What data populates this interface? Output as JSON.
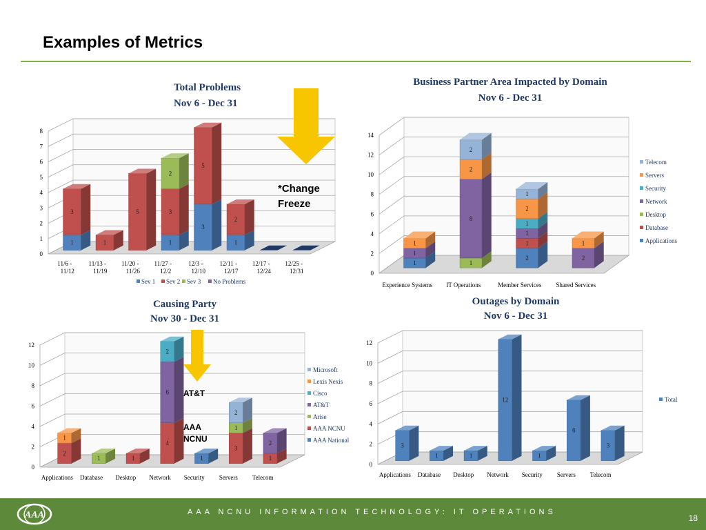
{
  "page": {
    "title": "Examples of Metrics",
    "footer": "AAA NCNU INFORMATION TECHNOLOGY: IT OPERATIONS",
    "page_number": "18",
    "notes": {
      "change_freeze": [
        "*Change",
        "Freeze"
      ],
      "att": "AT&T",
      "aaa_ncnu": [
        "AAA",
        "NCNU"
      ]
    },
    "colors": {
      "accent": "#7ab33e",
      "footer": "#5d8a3a",
      "arrow": "#f7c600"
    }
  },
  "chart_data": [
    {
      "type": "bar",
      "stacked": true,
      "title": "Total Problems",
      "subtitle": "Nov 6 - Dec 31",
      "categories": [
        "11/6 - 11/12",
        "11/13 - 11/19",
        "11/20 - 11/26",
        "11/27 - 12/2",
        "12/3 - 12/10",
        "12/11 - 12/17",
        "12/17 - 12/24",
        "12/25 - 12/31"
      ],
      "ylim": [
        0,
        8
      ],
      "yticks": [
        0,
        1,
        2,
        3,
        4,
        5,
        6,
        7,
        8
      ],
      "legend_position": "bottom",
      "series": [
        {
          "name": "Sev 1",
          "color": "#4f81bd",
          "values": [
            1,
            0,
            0,
            1,
            3,
            1,
            0,
            0
          ]
        },
        {
          "name": "Sev 2",
          "color": "#c0504d",
          "values": [
            3,
            1,
            5,
            3,
            5,
            2,
            0,
            0
          ]
        },
        {
          "name": "Sev 3",
          "color": "#9bbb59",
          "values": [
            0,
            0,
            0,
            2,
            0,
            0,
            0,
            0
          ]
        },
        {
          "name": "No Problems",
          "color": "#8064a2",
          "values": [
            0,
            0,
            0,
            0,
            0,
            0,
            0,
            0
          ]
        }
      ]
    },
    {
      "type": "bar",
      "stacked": true,
      "title": "Business Partner Area Impacted by Domain",
      "subtitle": "Nov 6 - Dec 31",
      "categories": [
        "Experience Systems",
        "IT Operations",
        "Member Services",
        "Shared Services"
      ],
      "ylim": [
        0,
        14
      ],
      "yticks": [
        0,
        2,
        4,
        6,
        8,
        10,
        12,
        14
      ],
      "legend_position": "right",
      "series": [
        {
          "name": "Applications",
          "color": "#4f81bd",
          "values": [
            1,
            0,
            2,
            0
          ]
        },
        {
          "name": "Database",
          "color": "#c0504d",
          "values": [
            0,
            0,
            1,
            0
          ]
        },
        {
          "name": "Desktop",
          "color": "#9bbb59",
          "values": [
            0,
            1,
            0,
            0
          ]
        },
        {
          "name": "Network",
          "color": "#8064a2",
          "values": [
            1,
            8,
            1,
            2
          ]
        },
        {
          "name": "Security",
          "color": "#4bacc6",
          "values": [
            0,
            0,
            1,
            0
          ]
        },
        {
          "name": "Servers",
          "color": "#f79646",
          "values": [
            1,
            2,
            2,
            1
          ]
        },
        {
          "name": "Telecom",
          "color": "#95b3d7",
          "values": [
            0,
            2,
            1,
            0
          ]
        }
      ]
    },
    {
      "type": "bar",
      "stacked": true,
      "title": "Causing Party",
      "subtitle": "Nov 30 - Dec 31",
      "categories": [
        "Applications",
        "Database",
        "Desktop",
        "Network",
        "Security",
        "Servers",
        "Telecom"
      ],
      "ylim": [
        0,
        12
      ],
      "yticks": [
        0,
        2,
        4,
        6,
        8,
        10,
        12
      ],
      "legend_position": "right",
      "series": [
        {
          "name": "AAA National",
          "color": "#4f81bd",
          "values": [
            0,
            0,
            0,
            0,
            1,
            0,
            0
          ]
        },
        {
          "name": "AAA NCNU",
          "color": "#c0504d",
          "values": [
            2,
            0,
            1,
            4,
            0,
            3,
            1
          ]
        },
        {
          "name": "Arise",
          "color": "#9bbb59",
          "values": [
            0,
            1,
            0,
            0,
            0,
            1,
            0
          ]
        },
        {
          "name": "AT&T",
          "color": "#8064a2",
          "values": [
            0,
            0,
            0,
            6,
            0,
            0,
            2
          ]
        },
        {
          "name": "Cisco",
          "color": "#4bacc6",
          "values": [
            0,
            0,
            0,
            2,
            0,
            0,
            0
          ]
        },
        {
          "name": "Lexis Nexis",
          "color": "#f79646",
          "values": [
            1,
            0,
            0,
            0,
            0,
            0,
            0
          ]
        },
        {
          "name": "Microsoft",
          "color": "#95b3d7",
          "values": [
            0,
            0,
            0,
            0,
            0,
            2,
            0
          ]
        }
      ]
    },
    {
      "type": "bar",
      "stacked": false,
      "title": "Outages by Domain",
      "subtitle": "Nov 6 - Dec 31",
      "categories": [
        "Applications",
        "Database",
        "Desktop",
        "Network",
        "Security",
        "Servers",
        "Telecom"
      ],
      "ylim": [
        0,
        12
      ],
      "yticks": [
        0,
        2,
        4,
        6,
        8,
        10,
        12
      ],
      "legend_position": "right",
      "series": [
        {
          "name": "Total",
          "color": "#4f81bd",
          "values": [
            3,
            1,
            1,
            12,
            1,
            6,
            3
          ]
        }
      ]
    }
  ]
}
